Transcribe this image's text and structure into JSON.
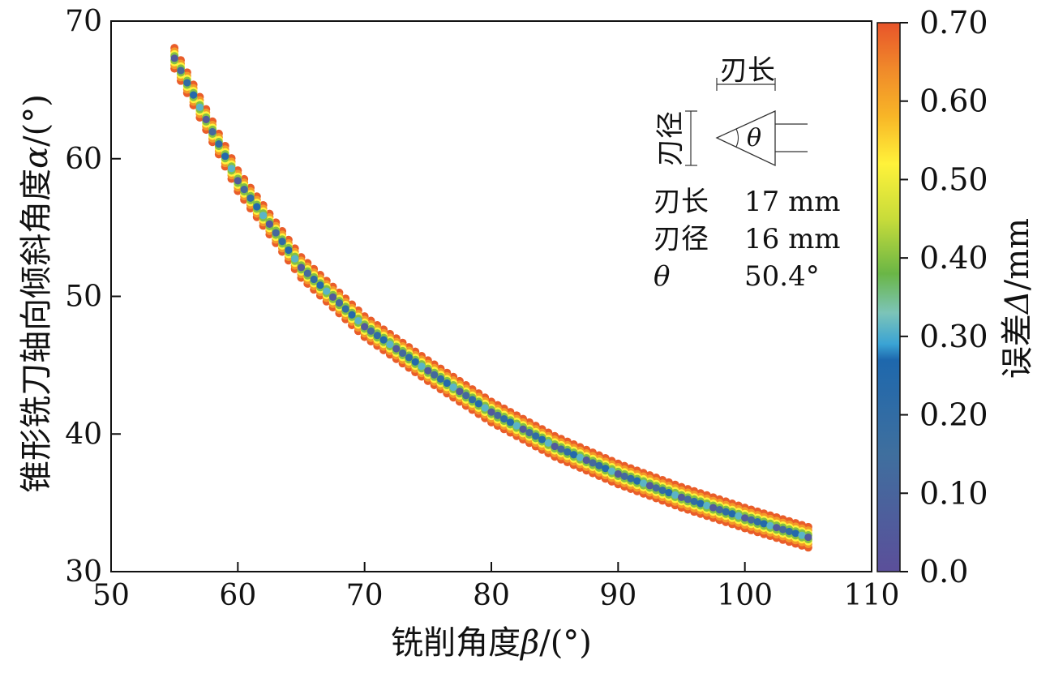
{
  "chart_data": {
    "type": "scatter",
    "xlabel_prefix": "铣削角度",
    "xlabel_symbol": "β",
    "xlabel_unit": "/(°)",
    "ylabel_prefix": "锥形铣刀轴向倾斜角度",
    "ylabel_symbol": "α",
    "ylabel_unit": "/(°)",
    "xlim": [
      50,
      110
    ],
    "ylim": [
      30,
      70
    ],
    "xticks": [
      "50",
      "60",
      "70",
      "80",
      "90",
      "100",
      "110"
    ],
    "yticks": [
      "30",
      "40",
      "50",
      "60",
      "70"
    ],
    "grid": false,
    "curve": {
      "x_start": 55,
      "x_end": 105,
      "x_step": 0.5,
      "points": [
        [
          55,
          67.3
        ],
        [
          60,
          58.4
        ],
        [
          65,
          52.1
        ],
        [
          70,
          47.8
        ],
        [
          75,
          44.6
        ],
        [
          80,
          41.6
        ],
        [
          85,
          39.1
        ],
        [
          90,
          37.1
        ],
        [
          95,
          35.4
        ],
        [
          100,
          33.9
        ],
        [
          105,
          32.5
        ]
      ]
    },
    "colorbar": {
      "label_prefix": "误差",
      "label_symbol": "Δ",
      "label_unit": "/mm",
      "range": [
        0.0,
        0.7
      ],
      "ticks": [
        "0.0",
        "0.10",
        "0.20",
        "0.30",
        "0.40",
        "0.50",
        "0.60",
        "0.70"
      ],
      "stops": [
        [
          0.0,
          "#5b4f9a"
        ],
        [
          0.15,
          "#3f6f9e"
        ],
        [
          0.27,
          "#1e68ad"
        ],
        [
          0.29,
          "#3aa3d4"
        ],
        [
          0.33,
          "#7cc4b8"
        ],
        [
          0.38,
          "#6ab646"
        ],
        [
          0.45,
          "#c8dc3a"
        ],
        [
          0.52,
          "#fff23a"
        ],
        [
          0.58,
          "#f8b627"
        ],
        [
          0.64,
          "#f08a2a"
        ],
        [
          0.7,
          "#e8542a"
        ]
      ]
    },
    "inset": {
      "blade_length_label": "刃长",
      "blade_diameter_label": "刃径",
      "theta_symbol": "θ",
      "specs": [
        {
          "name": "刃长",
          "value": "17 mm"
        },
        {
          "name": "刃径",
          "value": "16 mm"
        },
        {
          "name": "θ",
          "value": "50.4°"
        }
      ]
    }
  }
}
